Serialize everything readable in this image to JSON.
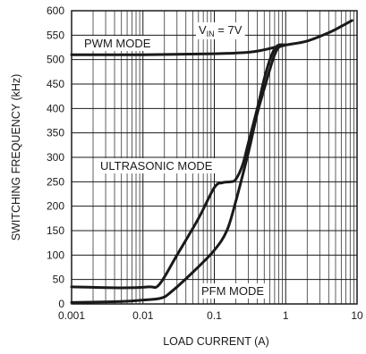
{
  "chart_data": {
    "type": "line",
    "title": "",
    "xlabel": "LOAD CURRENT (A)",
    "ylabel": "SWITCHING FREQUENCY (kHz)",
    "xscale": "log",
    "xlim": [
      0.001,
      10
    ],
    "ylim": [
      0,
      600
    ],
    "x_ticks": [
      0.001,
      0.01,
      0.1,
      1,
      10
    ],
    "x_tick_labels": [
      "0.001",
      "0.01",
      "0.1",
      "1",
      "10"
    ],
    "y_ticks": [
      0,
      50,
      100,
      150,
      200,
      250,
      300,
      350,
      400,
      450,
      500,
      550,
      600
    ],
    "y_tick_labels": [
      "0",
      "50",
      "100",
      "150",
      "200",
      "250",
      "300",
      "350",
      "400",
      "450",
      "500",
      "550",
      "600"
    ],
    "grid": true,
    "series": [
      {
        "name": "PWM MODE",
        "x": [
          0.001,
          0.01,
          0.1,
          0.3,
          0.5,
          0.7,
          1,
          2,
          4,
          6,
          8.5
        ],
        "y": [
          510,
          510,
          512,
          515,
          520,
          525,
          530,
          538,
          555,
          568,
          580
        ]
      },
      {
        "name": "ULTRASONIC MODE",
        "x": [
          0.001,
          0.005,
          0.012,
          0.017,
          0.03,
          0.06,
          0.1,
          0.13,
          0.17,
          0.2,
          0.25,
          0.3,
          0.4,
          0.5,
          0.6,
          0.7,
          0.8,
          1
        ],
        "y": [
          35,
          33,
          35,
          40,
          100,
          175,
          238,
          248,
          250,
          255,
          285,
          330,
          400,
          460,
          500,
          522,
          530,
          530
        ]
      },
      {
        "name": "PFM MODE",
        "x": [
          0.001,
          0.005,
          0.01,
          0.018,
          0.025,
          0.05,
          0.1,
          0.15,
          0.2,
          0.3,
          0.4,
          0.5,
          0.6,
          0.7,
          0.8,
          1
        ],
        "y": [
          3,
          5,
          8,
          12,
          25,
          65,
          110,
          150,
          210,
          310,
          390,
          440,
          480,
          510,
          525,
          530
        ]
      }
    ],
    "annotations": [
      {
        "id": "pwm",
        "text": "PWM MODE"
      },
      {
        "id": "ultra",
        "text": "ULTRASONIC MODE"
      },
      {
        "id": "pfm",
        "text": "PFM MODE"
      }
    ],
    "condition": {
      "prefix": "V",
      "subscript": "IN",
      "suffix": " = 7V"
    }
  }
}
